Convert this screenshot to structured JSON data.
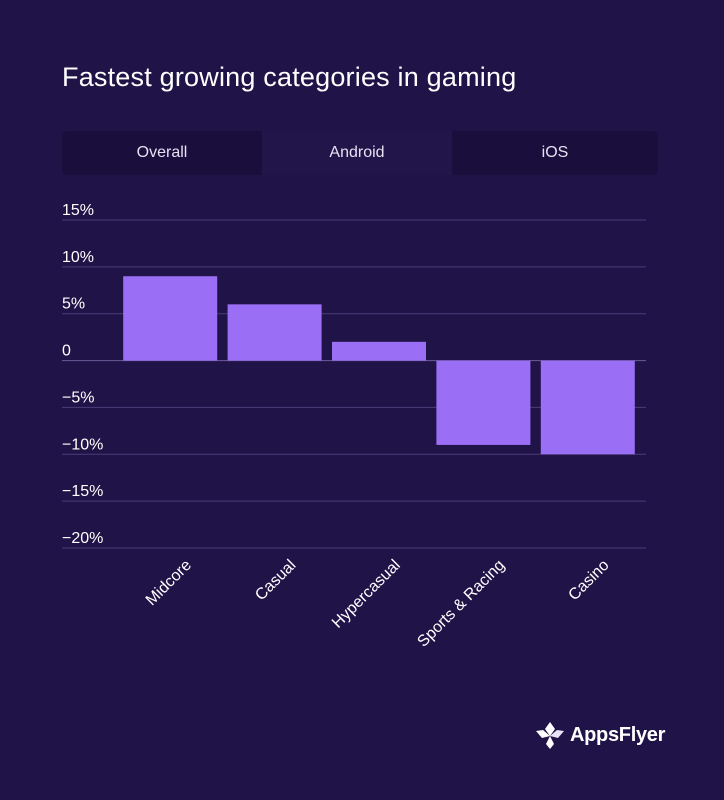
{
  "title": "Fastest growing categories in gaming",
  "tabs": [
    {
      "label": "Overall",
      "active": false
    },
    {
      "label": "Android",
      "active": true
    },
    {
      "label": "iOS",
      "active": false
    }
  ],
  "logo_text": "AppsFlyer",
  "colors": {
    "background": "#201347",
    "bar": "#9b6ff5",
    "grid": "#4a3d78",
    "tab_bar": "#1a0f3c",
    "tab_active": "#22154a"
  },
  "chart_data": {
    "type": "bar",
    "categories": [
      "Midcore",
      "Casual",
      "Hypercasual",
      "Sports & Racing",
      "Casino"
    ],
    "values": [
      9,
      6,
      2,
      -9,
      -10
    ],
    "ylim": [
      -20,
      15
    ],
    "yticks": [
      15,
      10,
      5,
      0,
      -5,
      -10,
      -15,
      -20
    ],
    "ytick_labels": [
      "15%",
      "10%",
      "5%",
      "0",
      "−5%",
      "−10%",
      "−15%",
      "−20%"
    ],
    "title": "",
    "xlabel": "",
    "ylabel": "",
    "grid": true,
    "legend": "none"
  }
}
